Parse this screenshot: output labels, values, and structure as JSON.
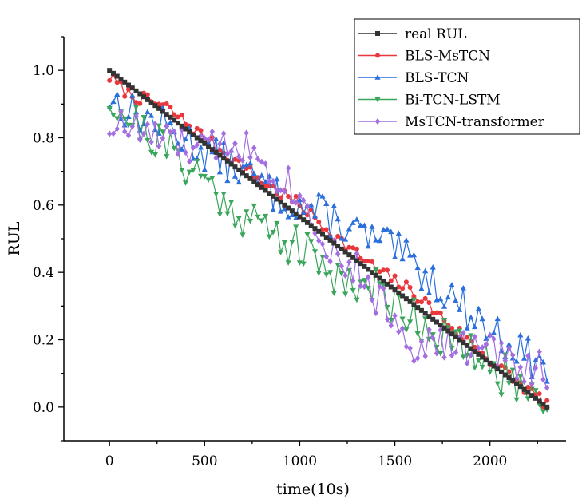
{
  "chart_data": {
    "type": "line",
    "title": "",
    "xlabel": "time(10s)",
    "ylabel": "RUL",
    "xlim": [
      -240,
      2400
    ],
    "ylim": [
      -0.1,
      1.1
    ],
    "x_ticks": [
      0,
      500,
      1000,
      1500,
      2000
    ],
    "x_tick_labels": [
      "0",
      "500",
      "1000",
      "1500",
      "2000"
    ],
    "y_ticks": [
      0.0,
      0.2,
      0.4,
      0.6,
      0.8,
      1.0
    ],
    "y_tick_labels": [
      "0.0",
      "0.2",
      "0.4",
      "0.6",
      "0.8",
      "1.0"
    ],
    "grid": false,
    "legend_position": "top-right",
    "sample_step": 20,
    "x_end": 2300,
    "series": [
      {
        "name": "real RUL",
        "color": "#333333",
        "marker": "square",
        "anchors": [
          [
            0,
            1.0
          ],
          [
            2300,
            0.0
          ]
        ],
        "noise": 0.0,
        "seed": 1
      },
      {
        "name": "BLS-MsTCN",
        "color": "#e8383d",
        "marker": "circle",
        "anchors": [
          [
            0,
            0.98
          ],
          [
            100,
            0.93
          ],
          [
            300,
            0.89
          ],
          [
            500,
            0.8
          ],
          [
            800,
            0.67
          ],
          [
            1000,
            0.6
          ],
          [
            1200,
            0.5
          ],
          [
            1400,
            0.41
          ],
          [
            1600,
            0.34
          ],
          [
            1800,
            0.24
          ],
          [
            2000,
            0.14
          ],
          [
            2200,
            0.05
          ],
          [
            2300,
            0.01
          ]
        ],
        "noise": 0.012,
        "seed": 7
      },
      {
        "name": "BLS-TCN",
        "color": "#2a6fdb",
        "marker": "triangle-up",
        "anchors": [
          [
            0,
            0.92
          ],
          [
            100,
            0.88
          ],
          [
            300,
            0.83
          ],
          [
            500,
            0.76
          ],
          [
            700,
            0.7
          ],
          [
            900,
            0.62
          ],
          [
            1100,
            0.58
          ],
          [
            1300,
            0.52
          ],
          [
            1400,
            0.49
          ],
          [
            1500,
            0.47
          ],
          [
            1600,
            0.42
          ],
          [
            1800,
            0.33
          ],
          [
            2000,
            0.23
          ],
          [
            2200,
            0.15
          ],
          [
            2300,
            0.11
          ]
        ],
        "noise": 0.035,
        "seed": 13
      },
      {
        "name": "Bi-TCN-LSTM",
        "color": "#3aa65b",
        "marker": "triangle-down",
        "anchors": [
          [
            0,
            0.92
          ],
          [
            100,
            0.86
          ],
          [
            300,
            0.77
          ],
          [
            500,
            0.68
          ],
          [
            600,
            0.61
          ],
          [
            800,
            0.54
          ],
          [
            1000,
            0.47
          ],
          [
            1200,
            0.39
          ],
          [
            1300,
            0.37
          ],
          [
            1400,
            0.35
          ],
          [
            1600,
            0.27
          ],
          [
            1800,
            0.19
          ],
          [
            2000,
            0.12
          ],
          [
            2200,
            0.05
          ],
          [
            2300,
            0.04
          ]
        ],
        "noise": 0.04,
        "seed": 21
      },
      {
        "name": "MsTCN-transformer",
        "color": "#a36fe0",
        "marker": "diamond",
        "anchors": [
          [
            0,
            0.84
          ],
          [
            100,
            0.83
          ],
          [
            300,
            0.79
          ],
          [
            500,
            0.76
          ],
          [
            650,
            0.8
          ],
          [
            800,
            0.74
          ],
          [
            1000,
            0.63
          ],
          [
            1150,
            0.48
          ],
          [
            1300,
            0.4
          ],
          [
            1500,
            0.26
          ],
          [
            1600,
            0.19
          ],
          [
            1800,
            0.18
          ],
          [
            2000,
            0.17
          ],
          [
            2200,
            0.12
          ],
          [
            2300,
            0.11
          ]
        ],
        "noise": 0.035,
        "seed": 33
      }
    ]
  }
}
